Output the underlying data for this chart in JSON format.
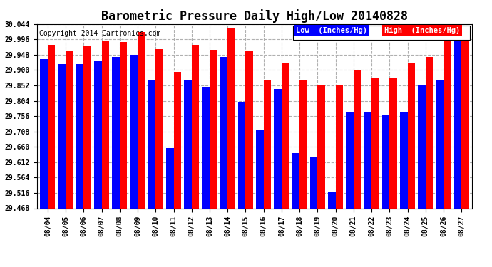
{
  "title": "Barometric Pressure Daily High/Low 20140828",
  "copyright": "Copyright 2014 Cartronics.com",
  "legend_low": "Low  (Inches/Hg)",
  "legend_high": "High  (Inches/Hg)",
  "dates": [
    "08/04",
    "08/05",
    "08/06",
    "08/07",
    "08/08",
    "08/09",
    "08/10",
    "08/11",
    "08/12",
    "08/13",
    "08/14",
    "08/15",
    "08/16",
    "08/17",
    "08/18",
    "08/19",
    "08/20",
    "08/21",
    "08/22",
    "08/23",
    "08/24",
    "08/25",
    "08/26",
    "08/27"
  ],
  "low": [
    29.935,
    29.918,
    29.918,
    29.928,
    29.94,
    29.948,
    29.868,
    29.655,
    29.868,
    29.848,
    29.94,
    29.8,
    29.715,
    29.84,
    29.64,
    29.628,
    29.518,
    29.77,
    29.77,
    29.76,
    29.77,
    29.855,
    29.87,
    29.99
  ],
  "high": [
    29.98,
    29.96,
    29.975,
    29.992,
    29.988,
    30.02,
    29.965,
    29.895,
    29.98,
    29.963,
    30.03,
    29.96,
    29.87,
    29.92,
    29.87,
    29.852,
    29.852,
    29.9,
    29.875,
    29.875,
    29.92,
    29.94,
    30.04,
    30.04
  ],
  "ymin": 29.468,
  "ymax": 30.044,
  "yticks": [
    29.468,
    29.516,
    29.564,
    29.612,
    29.66,
    29.708,
    29.756,
    29.804,
    29.852,
    29.9,
    29.948,
    29.996,
    30.044
  ],
  "low_color": "#0000ff",
  "high_color": "#ff0000",
  "bg_color": "#ffffff",
  "grid_color": "#b0b0b0",
  "title_fontsize": 12,
  "copyright_fontsize": 7,
  "legend_fontsize": 7.5,
  "tick_fontsize": 7,
  "bar_width": 0.42
}
